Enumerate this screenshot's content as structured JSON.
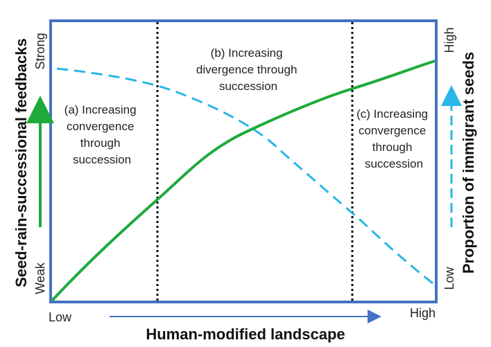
{
  "diagram": {
    "x_axis": {
      "title": "Human-modified landscape",
      "low_label": "Low",
      "high_label": "High"
    },
    "left_axis": {
      "title": "Seed-rain-successional feedbacks",
      "low_label": "Weak",
      "high_label": "Strong"
    },
    "right_axis": {
      "title": "Proportion of immigrant seeds",
      "low_label": "Low",
      "high_label": "High"
    },
    "regions": {
      "a": {
        "line1": "(a) Increasing",
        "line2": "convergence",
        "line3": "through",
        "line4": "succession"
      },
      "b": {
        "line1": "(b) Increasing",
        "line2": "divergence through",
        "line3": "succession"
      },
      "c": {
        "line1": "(c) Increasing",
        "line2": "convergence",
        "line3": "through",
        "line4": "succession"
      }
    },
    "colors": {
      "frame": "#4472c4",
      "feedback_curve": "#1faa3c",
      "immigrant_curve": "#29b6e8",
      "divider": "#000000",
      "x_arrow": "#4472c4"
    }
  }
}
